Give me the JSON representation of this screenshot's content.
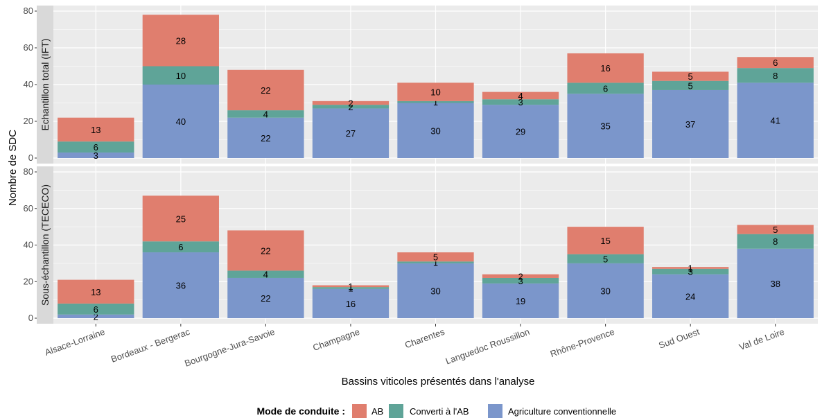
{
  "chart_data": {
    "type": "bar",
    "stacked": true,
    "xlabel": "Bassins viticoles présentés dans l'analyse",
    "ylabel": "Nombre de SDC",
    "ylim": [
      0,
      80
    ],
    "yticks": [
      0,
      20,
      40,
      60,
      80
    ],
    "categories": [
      "Alsace-Lorraine",
      "Bordeaux - Bergerac",
      "Bourgogne-Jura-Savoie",
      "Champagne",
      "Charentes",
      "Languedoc Roussillon",
      "Rhône-Provence",
      "Sud Ouest",
      "Val de Loire"
    ],
    "legend": {
      "title": "Mode de conduite :",
      "position": "bottom",
      "entries": [
        {
          "label": "AB",
          "color": "#E07E6E"
        },
        {
          "label": "Converti à l'AB",
          "color": "#5FA498"
        },
        {
          "label": "Agriculture conventionnelle",
          "color": "#7B96CB"
        }
      ]
    },
    "colors": {
      "panel_bg": "#EBEBEB",
      "grid": "#FFFFFF",
      "strip_bg": "#D9D9D9"
    },
    "grid": true,
    "panels": [
      {
        "strip": "Echantillon total (IFT)",
        "series": [
          {
            "name": "Agriculture conventionnelle",
            "values": [
              3,
              40,
              22,
              27,
              30,
              29,
              35,
              37,
              41
            ]
          },
          {
            "name": "Converti à l'AB",
            "values": [
              6,
              10,
              4,
              2,
              1,
              3,
              6,
              5,
              8
            ]
          },
          {
            "name": "AB",
            "values": [
              13,
              28,
              22,
              2,
              10,
              4,
              16,
              5,
              6
            ]
          }
        ]
      },
      {
        "strip": "Sous-échantillon (TECECO)",
        "series": [
          {
            "name": "Agriculture conventionnelle",
            "values": [
              2,
              36,
              22,
              16,
              30,
              19,
              30,
              24,
              38
            ]
          },
          {
            "name": "Converti à l'AB",
            "values": [
              6,
              6,
              4,
              1,
              1,
              3,
              5,
              3,
              8
            ]
          },
          {
            "name": "AB",
            "values": [
              13,
              25,
              22,
              1,
              5,
              2,
              15,
              1,
              5
            ]
          }
        ]
      }
    ]
  }
}
